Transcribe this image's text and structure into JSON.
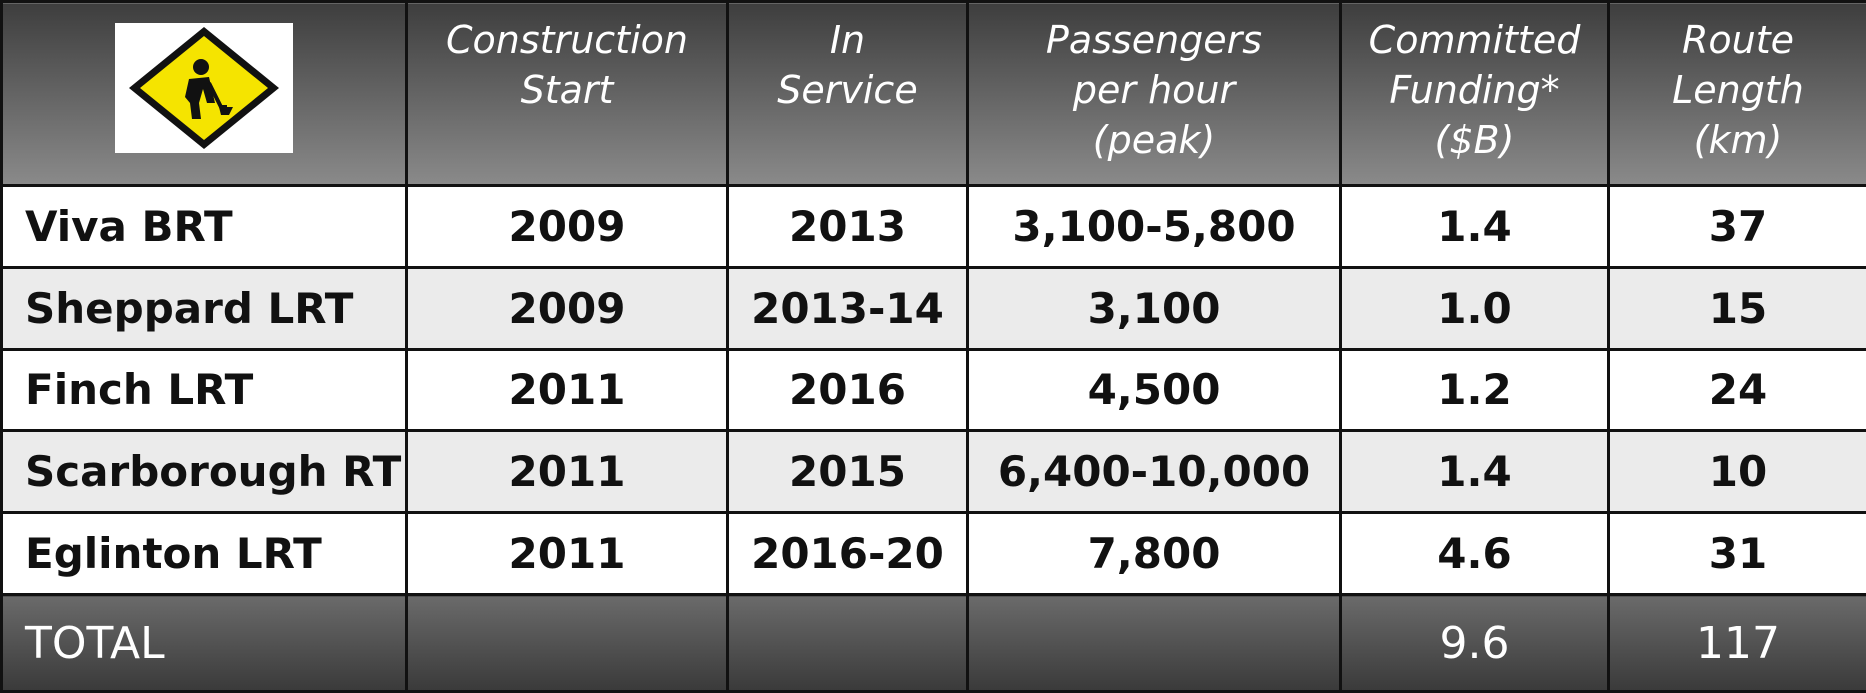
{
  "header": {
    "columns": [
      {
        "lines": [
          "Construction",
          "Start"
        ]
      },
      {
        "lines": [
          "In",
          "Service"
        ]
      },
      {
        "lines": [
          "Passengers",
          "per hour",
          "(peak)"
        ]
      },
      {
        "lines": [
          "Committed",
          "Funding*",
          "($B)"
        ]
      },
      {
        "lines": [
          "Route",
          "Length",
          "(km)"
        ]
      }
    ]
  },
  "table": {
    "rows": [
      [
        "Viva BRT",
        "2009",
        "2013",
        "3,100-5,800",
        "1.4",
        "37"
      ],
      [
        "Sheppard LRT",
        "2009",
        "2013-14",
        "3,100",
        "1.0",
        "15"
      ],
      [
        "Finch LRT",
        "2011",
        "2016",
        "4,500",
        "1.2",
        "24"
      ],
      [
        "Scarborough RT",
        "2011",
        "2015",
        "6,400-10,000",
        "1.4",
        "10"
      ],
      [
        "Eglinton LRT",
        "2011",
        "2016-20",
        "7,800",
        "4.6",
        "31"
      ]
    ]
  },
  "total": {
    "label": "TOTAL",
    "funding": "9.6",
    "length": "117"
  }
}
